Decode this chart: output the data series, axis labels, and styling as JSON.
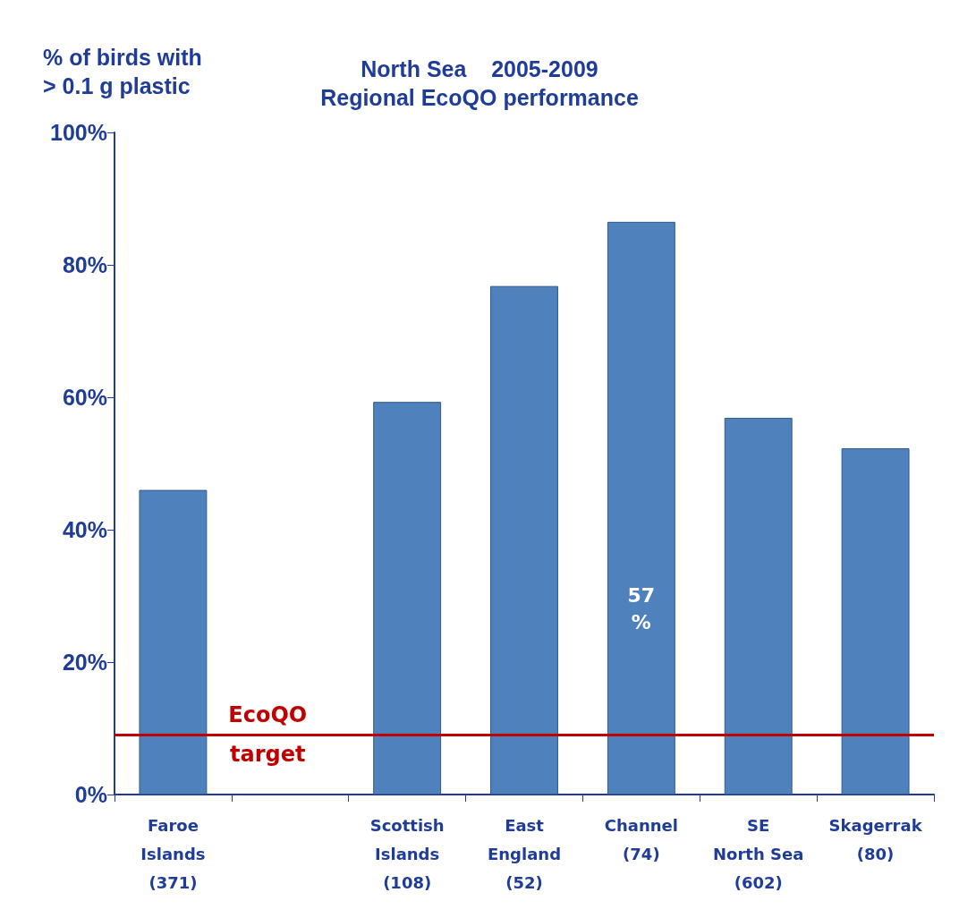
{
  "chart_data": {
    "type": "bar",
    "title": "North Sea    2005-2009\nRegional EcoQO performance",
    "ylabel": "% of birds with\n> 0.1 g plastic",
    "categories": [
      "Faroe\nIslands\n(371)",
      null,
      "Scottish\nIslands\n(108)",
      "East\nEngland\n(52)",
      "Channel\n(74)",
      "SE\nNorth Sea\n(602)",
      "Skagerrak\n(80)"
    ],
    "values": [
      46,
      null,
      59.3,
      76.8,
      86.5,
      56.9,
      52.3
    ],
    "color": "#4f81bd",
    "ylim": [
      0,
      100
    ],
    "yticks": [
      {
        "value": 0,
        "label": "0%"
      },
      {
        "value": 20,
        "label": "20%"
      },
      {
        "value": 40,
        "label": "40%"
      },
      {
        "value": 60,
        "label": "60%"
      },
      {
        "value": 80,
        "label": "80%"
      },
      {
        "value": 100,
        "label": "100%"
      }
    ],
    "ref_lines": [
      {
        "axis": "y",
        "value": 9,
        "label": "EcoQO\ntarget",
        "color": "#c00000"
      }
    ],
    "annotations": [
      "57\n%"
    ],
    "grid": false
  }
}
